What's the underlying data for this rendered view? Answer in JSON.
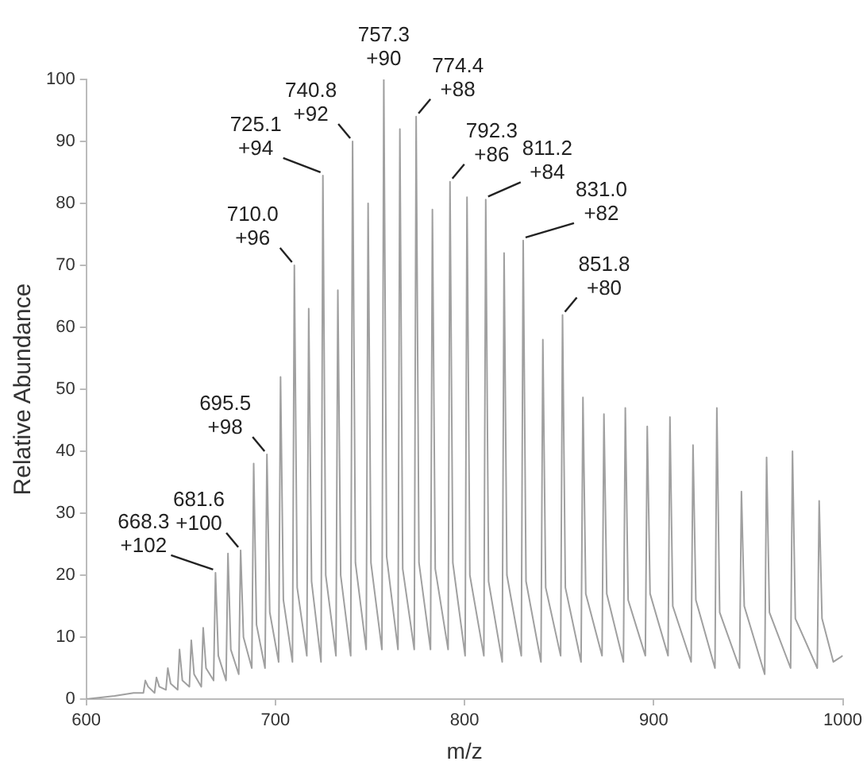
{
  "chart_data": {
    "type": "line",
    "xlabel": "m/z",
    "ylabel": "Relative Abundance",
    "color": "#a0a0a0",
    "marker": "none",
    "legend": false,
    "grid": false,
    "xlim": [
      600,
      1000
    ],
    "xticks": [
      600,
      700,
      800,
      900,
      1000
    ],
    "ylim": [
      0,
      100
    ],
    "yticks": [
      0,
      10,
      20,
      30,
      40,
      50,
      60,
      70,
      80,
      90,
      100
    ],
    "x": [
      600,
      615,
      625,
      630.2,
      631.2,
      632.7,
      636.1,
      637.1,
      638.6,
      642.1,
      643.1,
      644.6,
      648.3,
      649.3,
      650.8,
      654.5,
      655.5,
      657,
      660.8,
      661.8,
      663.3,
      667.3,
      668.3,
      669.8,
      673.9,
      674.9,
      676.4,
      680.6,
      681.6,
      683.1,
      687.5,
      688.5,
      690,
      694.5,
      695.5,
      697,
      701.7,
      702.7,
      704.2,
      709,
      710,
      711.5,
      716.6,
      717.6,
      719.1,
      724.1,
      725.1,
      726.6,
      732,
      733,
      734.5,
      739.8,
      740.8,
      742.3,
      748,
      749,
      750.5,
      756.3,
      757.3,
      758.8,
      764.8,
      765.8,
      767.3,
      773.4,
      774.4,
      775.9,
      782,
      783,
      784.5,
      791.3,
      792.3,
      793.8,
      800.3,
      801.3,
      802.8,
      810.2,
      811.2,
      812.7,
      819.9,
      820.9,
      822.4,
      830,
      831,
      832.5,
      840.4,
      841.4,
      842.9,
      850.8,
      851.8,
      853.3,
      861.6,
      862.6,
      864.1,
      872.7,
      873.7,
      875.2,
      884,
      885,
      886.5,
      895.6,
      896.6,
      898.1,
      907.6,
      908.6,
      910.1,
      919.8,
      920.8,
      922.3,
      932.4,
      933.4,
      934.9,
      945.4,
      946.4,
      947.9,
      958.7,
      959.7,
      961.2,
      972.4,
      973.4,
      974.9,
      986.5,
      987.5,
      989,
      995,
      1000
    ],
    "values": [
      0,
      0.5,
      1,
      1,
      3,
      2,
      1,
      3.5,
      2,
      1.5,
      5,
      2.5,
      1.5,
      8,
      3,
      2,
      9.5,
      4,
      2,
      11.5,
      5,
      3,
      20.4,
      7,
      3,
      23.5,
      8,
      4,
      24,
      10,
      5,
      38,
      12,
      5,
      39.5,
      14,
      6,
      52,
      16,
      6,
      70,
      18,
      7,
      63,
      19,
      6,
      84.5,
      20,
      7,
      66,
      20,
      7,
      90,
      22,
      8,
      80,
      22,
      8,
      100,
      23,
      8,
      92,
      21,
      8,
      94,
      22,
      8,
      79,
      21,
      8,
      83.5,
      22,
      7,
      81,
      20,
      7,
      80.6,
      19,
      6,
      72,
      20,
      7,
      74,
      19,
      6,
      58,
      18,
      7,
      62,
      18,
      6,
      48.7,
      17,
      7,
      46,
      17,
      6,
      47,
      16,
      7,
      44,
      17,
      7,
      45.5,
      15,
      6,
      41,
      16,
      5,
      47,
      14,
      5,
      33.5,
      15,
      4,
      39,
      14,
      5,
      40,
      13,
      5,
      32,
      13,
      6,
      7
    ],
    "annotations": [
      {
        "text": "668.3\n+102",
        "x": 668.3,
        "y": 20.4
      },
      {
        "text": "681.6\n+100",
        "x": 681.6,
        "y": 24
      },
      {
        "text": "695.5\n+98",
        "x": 695.5,
        "y": 39.5
      },
      {
        "text": "710.0\n+96",
        "x": 710,
        "y": 70
      },
      {
        "text": "725.1\n+94",
        "x": 725.1,
        "y": 84.5
      },
      {
        "text": "740.8\n+92",
        "x": 740.8,
        "y": 90
      },
      {
        "text": "757.3\n+90",
        "x": 757.3,
        "y": 100
      },
      {
        "text": "774.4\n+88",
        "x": 774.4,
        "y": 94
      },
      {
        "text": "792.3\n+86",
        "x": 792.3,
        "y": 83.5
      },
      {
        "text": "811.2\n+84",
        "x": 811.2,
        "y": 80.6
      },
      {
        "text": "831.0\n+82",
        "x": 831,
        "y": 74
      },
      {
        "text": "851.8\n+80",
        "x": 851.8,
        "y": 62
      }
    ]
  }
}
